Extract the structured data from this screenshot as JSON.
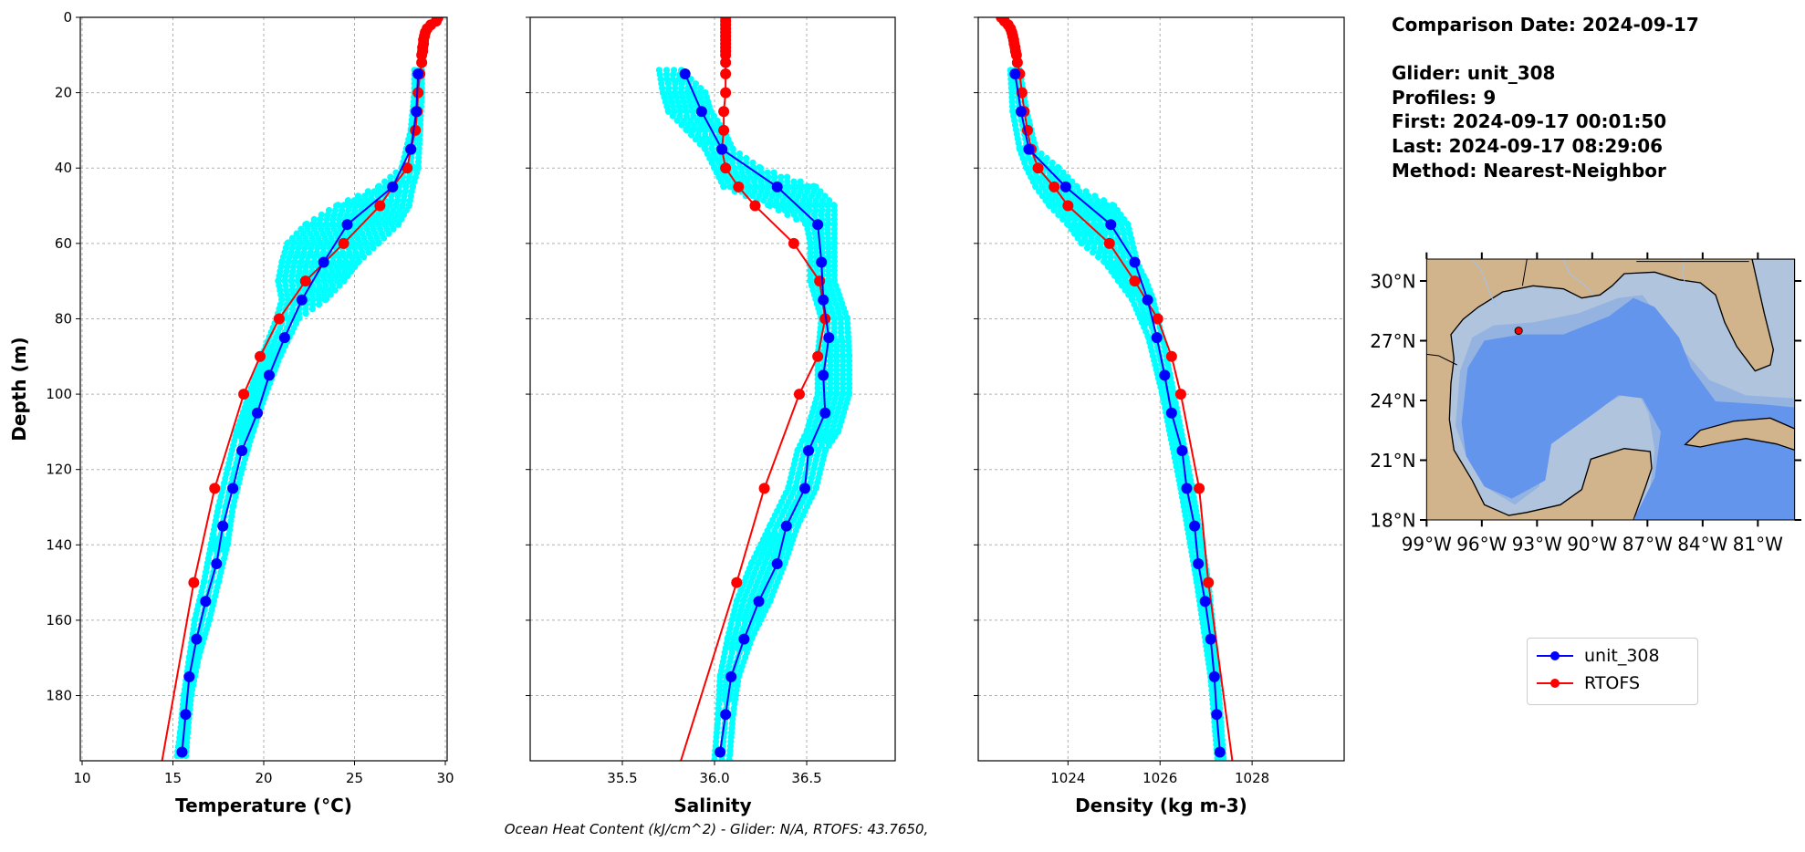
{
  "info": {
    "comparison_date": "Comparison Date: 2024-09-17",
    "glider": "Glider: unit_308",
    "profiles": "Profiles: 9",
    "first": "First: 2024-09-17 00:01:50",
    "last": "Last: 2024-09-17 08:29:06",
    "method": "Method: Nearest-Neighbor"
  },
  "footer": "Ocean Heat Content (kJ/cm^2) - Glider: N/A,  RTOFS: 43.7650,",
  "legend": {
    "items": [
      {
        "label": "unit_308",
        "color": "#0000ff"
      },
      {
        "label": "RTOFS",
        "color": "#ff0000"
      }
    ],
    "placement": "lower-right"
  },
  "colors": {
    "glider": "#0000ff",
    "rtofs": "#ff0000",
    "raw": "#00ffff",
    "grid": "#b0b0b0"
  },
  "map": {
    "lat_ticks": [
      "30°N",
      "27°N",
      "24°N",
      "21°N",
      "18°N"
    ],
    "lon_ticks": [
      "99°W",
      "96°W",
      "93°W",
      "90°W",
      "87°W",
      "84°W",
      "81°W"
    ],
    "lon_range": [
      -99,
      -79
    ],
    "lat_range": [
      18,
      31.1
    ],
    "glider_position": {
      "lon": -94.0,
      "lat": 27.5
    },
    "colors": {
      "land": "#d2b48c",
      "shelf": "#b0c4de",
      "slope": "#95b3e0",
      "deep": "#6495ed",
      "rivers": "#9dc3f0"
    }
  },
  "chart_data": [
    {
      "type": "line",
      "xlabel": "Temperature (°C)",
      "ylabel": "Depth (m)",
      "xlim": [
        9.9,
        30.1
      ],
      "ylim": [
        197.3,
        0
      ],
      "xticks": [
        "10",
        "15",
        "20",
        "25",
        "30"
      ],
      "yticks": [
        "0",
        "20",
        "40",
        "60",
        "80",
        "100",
        "120",
        "140",
        "160",
        "180"
      ],
      "grid": true,
      "series": [
        {
          "name": "unit_308",
          "depth": [
            15,
            25,
            35,
            45,
            55,
            65,
            75,
            85,
            95,
            105,
            115,
            125,
            135,
            145,
            155,
            165,
            175,
            185,
            195
          ],
          "values": [
            28.5,
            28.4,
            28.1,
            27.1,
            24.6,
            23.3,
            22.1,
            21.15,
            20.3,
            19.65,
            18.8,
            18.3,
            17.75,
            17.4,
            16.8,
            16.3,
            15.9,
            15.7,
            15.5
          ]
        },
        {
          "name": "RTOFS",
          "depth": [
            0,
            1,
            2,
            3,
            4,
            5,
            6,
            7,
            8,
            9,
            10,
            12,
            15,
            20,
            25,
            30,
            35,
            40,
            45,
            50,
            60,
            70,
            80,
            90,
            100,
            125,
            150,
            200
          ],
          "values": [
            29.6,
            29.5,
            29.2,
            29.0,
            28.9,
            28.85,
            28.8,
            28.8,
            28.75,
            28.75,
            28.7,
            28.7,
            28.6,
            28.5,
            28.45,
            28.35,
            28.1,
            27.9,
            27.1,
            26.4,
            24.4,
            22.3,
            20.85,
            19.8,
            18.9,
            17.3,
            16.15,
            14.3
          ]
        }
      ],
      "raw_glider_envelope": {
        "depth": [
          14,
          20,
          30,
          40,
          45,
          50,
          55,
          60,
          65,
          70,
          75,
          80,
          90,
          100,
          110,
          120,
          130,
          140,
          150,
          160,
          170,
          180,
          190,
          197
        ],
        "min": [
          28.3,
          28.3,
          28.1,
          27.6,
          26.3,
          24.0,
          22.3,
          21.3,
          21.0,
          20.8,
          21.0,
          20.7,
          19.9,
          19.2,
          18.5,
          18.0,
          17.5,
          17.1,
          16.7,
          16.2,
          15.9,
          15.6,
          15.4,
          15.2
        ],
        "max": [
          28.7,
          28.7,
          28.6,
          28.5,
          28.2,
          28.0,
          27.4,
          26.3,
          25.2,
          24.4,
          23.4,
          21.9,
          20.9,
          20.1,
          19.4,
          18.8,
          18.3,
          18.0,
          17.5,
          17.0,
          16.4,
          16.0,
          15.8,
          15.7
        ]
      }
    },
    {
      "type": "line",
      "xlabel": "Salinity",
      "xlim": [
        35.0,
        36.98
      ],
      "ylim": [
        197.3,
        0
      ],
      "xticks": [
        "35.5",
        "36.0",
        "36.5"
      ],
      "grid": true,
      "series": [
        {
          "name": "unit_308",
          "depth": [
            15,
            25,
            35,
            45,
            55,
            65,
            75,
            85,
            95,
            105,
            115,
            125,
            135,
            145,
            155,
            165,
            175,
            185,
            195
          ],
          "values": [
            35.84,
            35.93,
            36.04,
            36.34,
            36.56,
            36.58,
            36.59,
            36.62,
            36.59,
            36.6,
            36.51,
            36.49,
            36.39,
            36.34,
            36.24,
            36.16,
            36.09,
            36.06,
            36.03
          ]
        },
        {
          "name": "RTOFS",
          "depth": [
            0,
            1,
            2,
            3,
            4,
            5,
            6,
            7,
            8,
            9,
            10,
            12,
            15,
            20,
            25,
            30,
            35,
            40,
            45,
            50,
            60,
            70,
            80,
            90,
            100,
            125,
            150,
            200
          ],
          "values": [
            36.06,
            36.06,
            36.06,
            36.06,
            36.06,
            36.06,
            36.06,
            36.06,
            36.06,
            36.06,
            36.06,
            36.06,
            36.06,
            36.06,
            36.05,
            36.05,
            36.04,
            36.06,
            36.13,
            36.22,
            36.43,
            36.57,
            36.6,
            36.56,
            36.46,
            36.27,
            36.12,
            35.8
          ]
        }
      ],
      "raw_glider_envelope": {
        "depth": [
          14,
          20,
          25,
          30,
          35,
          40,
          45,
          50,
          55,
          60,
          70,
          80,
          90,
          100,
          110,
          115,
          125,
          135,
          145,
          155,
          165,
          175,
          185,
          197
        ],
        "min": [
          35.7,
          35.72,
          35.75,
          35.85,
          35.95,
          36.0,
          36.05,
          36.3,
          36.5,
          36.52,
          36.52,
          36.58,
          36.56,
          36.56,
          36.5,
          36.45,
          36.4,
          36.3,
          36.2,
          36.12,
          36.07,
          36.03,
          36.02,
          36.0
        ],
        "max": [
          35.82,
          35.95,
          35.98,
          36.05,
          36.1,
          36.25,
          36.55,
          36.65,
          36.65,
          36.65,
          36.65,
          36.72,
          36.73,
          36.73,
          36.67,
          36.6,
          36.55,
          36.45,
          36.38,
          36.3,
          36.2,
          36.13,
          36.1,
          36.08
        ]
      }
    },
    {
      "type": "line",
      "xlabel": "Density (kg m-3)",
      "xlim": [
        1022.05,
        1030.0
      ],
      "ylim": [
        197.3,
        0
      ],
      "xticks": [
        "1024",
        "1026",
        "1028"
      ],
      "grid": true,
      "series": [
        {
          "name": "unit_308",
          "depth": [
            15,
            25,
            35,
            45,
            55,
            65,
            75,
            85,
            95,
            105,
            115,
            125,
            135,
            145,
            155,
            165,
            175,
            185,
            195
          ],
          "values": [
            1022.85,
            1022.98,
            1023.15,
            1023.95,
            1024.93,
            1025.45,
            1025.73,
            1025.93,
            1026.1,
            1026.25,
            1026.48,
            1026.58,
            1026.75,
            1026.83,
            1026.98,
            1027.1,
            1027.18,
            1027.23,
            1027.3
          ]
        },
        {
          "name": "RTOFS",
          "depth": [
            0,
            1,
            2,
            3,
            4,
            5,
            6,
            7,
            8,
            9,
            10,
            12,
            15,
            20,
            25,
            30,
            35,
            40,
            45,
            50,
            60,
            70,
            80,
            90,
            100,
            125,
            150,
            200
          ],
          "values": [
            1022.55,
            1022.62,
            1022.7,
            1022.75,
            1022.78,
            1022.8,
            1022.82,
            1022.83,
            1022.85,
            1022.86,
            1022.88,
            1022.9,
            1022.95,
            1023.0,
            1023.05,
            1023.12,
            1023.2,
            1023.35,
            1023.7,
            1024.0,
            1024.9,
            1025.45,
            1025.95,
            1026.25,
            1026.45,
            1026.85,
            1027.05,
            1027.6
          ]
        }
      ],
      "raw_glider_envelope": {
        "depth": [
          14,
          25,
          35,
          40,
          45,
          50,
          55,
          60,
          65,
          70,
          75,
          85,
          100,
          125,
          150,
          175,
          197
        ],
        "min": [
          1022.75,
          1022.8,
          1022.95,
          1023.1,
          1023.3,
          1023.6,
          1024.0,
          1024.3,
          1024.8,
          1025.1,
          1025.4,
          1025.75,
          1026.05,
          1026.45,
          1026.8,
          1027.1,
          1027.25
        ],
        "max": [
          1022.95,
          1023.1,
          1023.3,
          1023.8,
          1024.2,
          1025.0,
          1025.3,
          1025.4,
          1025.5,
          1025.7,
          1025.85,
          1026.05,
          1026.3,
          1026.7,
          1027.05,
          1027.25,
          1027.38
        ]
      }
    }
  ]
}
